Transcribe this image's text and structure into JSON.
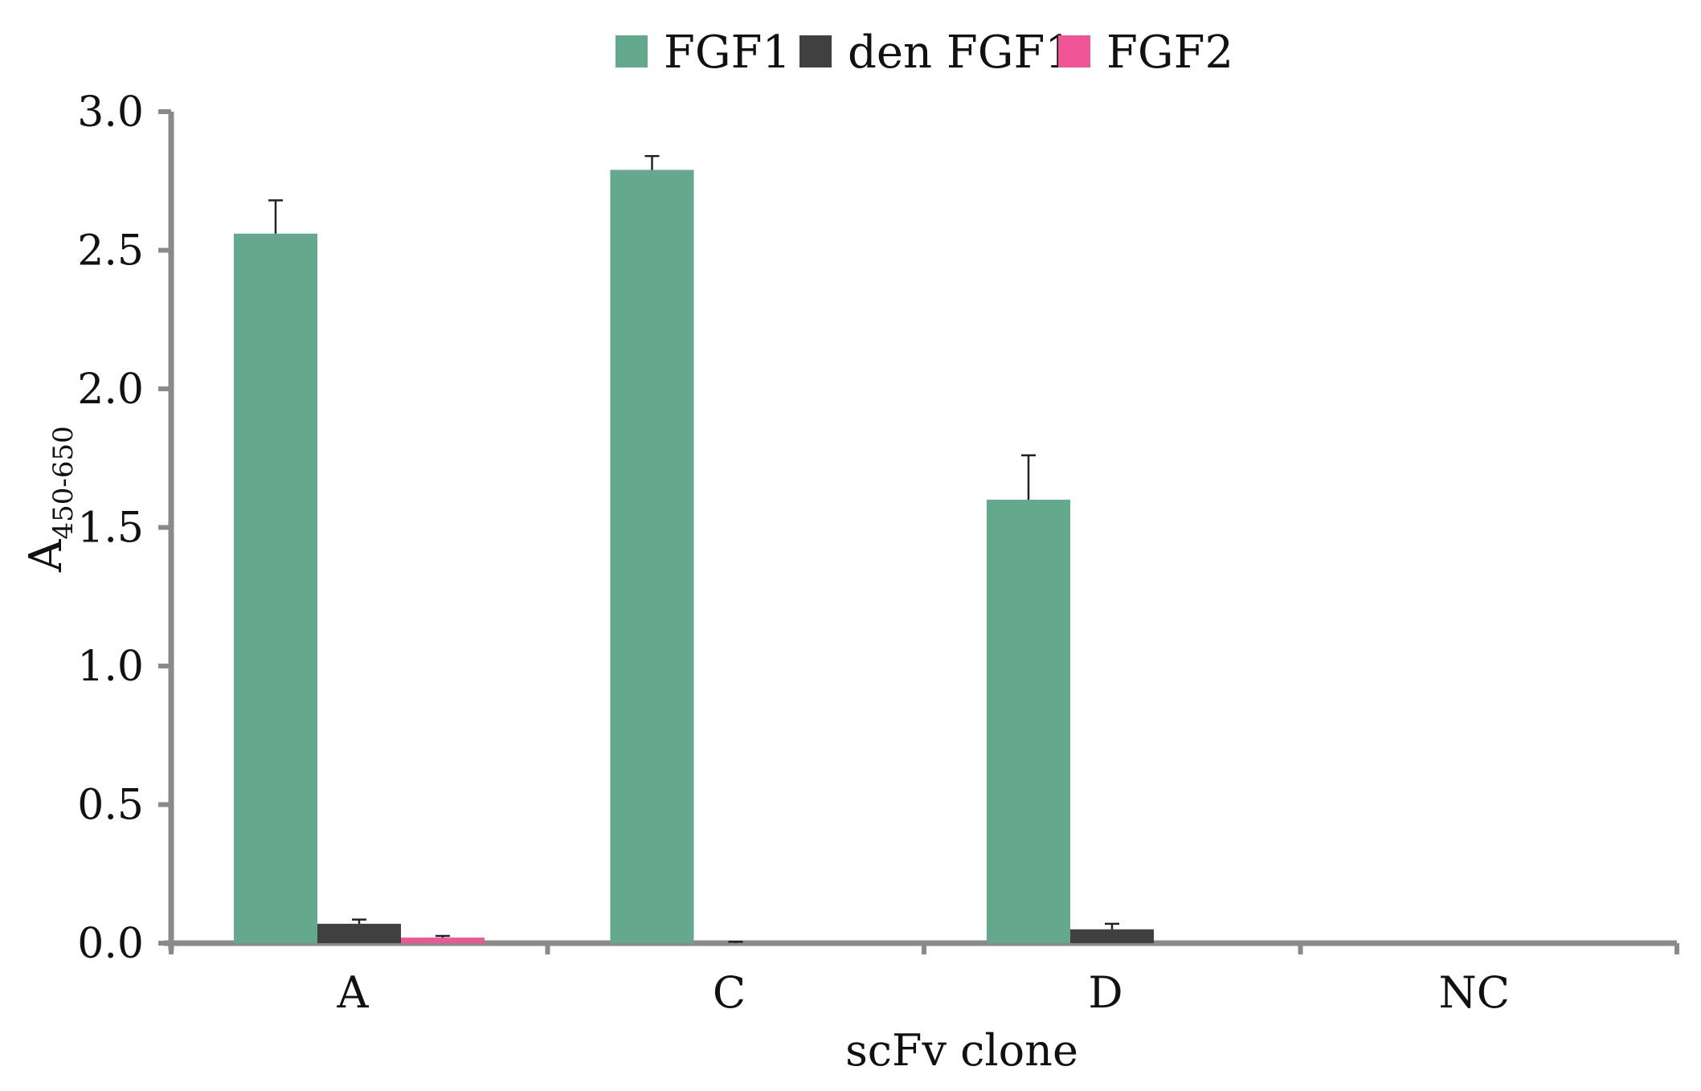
{
  "chart_data": {
    "type": "bar",
    "title": "",
    "xlabel": "scFv clone",
    "ylabel": {
      "main": "A",
      "subscript": "450-650"
    },
    "categories": [
      "A",
      "C",
      "D",
      "NC"
    ],
    "series": [
      {
        "name": "FGF1",
        "color": "#64a88e",
        "values": [
          2.56,
          2.79,
          1.6,
          0
        ],
        "errors": [
          0.12,
          0.05,
          0.16,
          0
        ]
      },
      {
        "name": "den FGF1",
        "color": "#404040",
        "values": [
          0.07,
          0.0,
          0.05,
          0
        ],
        "errors": [
          0.015,
          0.005,
          0.02,
          0
        ]
      },
      {
        "name": "FGF2",
        "color": "#ef5597",
        "values": [
          0.02,
          0,
          0,
          0
        ],
        "errors": [
          0.006,
          0,
          0,
          0
        ]
      }
    ],
    "ylim": [
      0,
      3.0
    ],
    "yticks": [
      0,
      0.5,
      1.0,
      1.5,
      2.0,
      2.5,
      3.0
    ],
    "ytick_labels": [
      "0.0",
      "0.5",
      "1.0",
      "1.5",
      "2.0",
      "2.5",
      "3.0"
    ],
    "grid": false,
    "legend_position": "top-center",
    "axis_color": "#8a8a8a"
  }
}
